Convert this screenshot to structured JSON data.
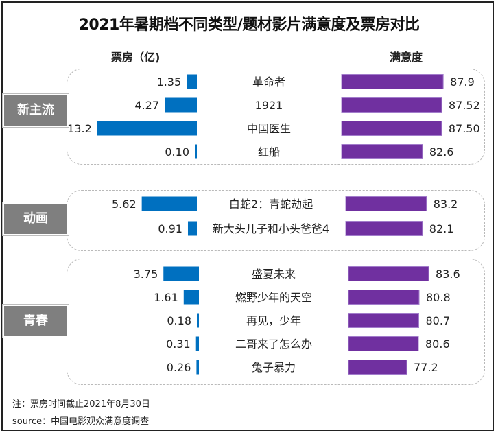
{
  "chart_data": {
    "type": "bar",
    "title": "2021年暑期档不同类型/题材影片满意度及票房对比",
    "left_axis_label": "票房（亿)",
    "right_axis_label": "满意度",
    "groups": [
      {
        "name": "新主流",
        "films": [
          {
            "title": "革命者",
            "box_office": 1.35,
            "box_office_label": "1.35",
            "satisfaction": 87.9,
            "satisfaction_label": "87.9"
          },
          {
            "title": "1921",
            "box_office": 4.27,
            "box_office_label": "4.27",
            "satisfaction": 87.52,
            "satisfaction_label": "87.52"
          },
          {
            "title": "中国医生",
            "box_office": 13.2,
            "box_office_label": "13.2",
            "satisfaction": 87.5,
            "satisfaction_label": "87.50"
          },
          {
            "title": "红船",
            "box_office": 0.1,
            "box_office_label": "0.10",
            "satisfaction": 82.6,
            "satisfaction_label": "82.6"
          }
        ]
      },
      {
        "name": "动画",
        "films": [
          {
            "title": "白蛇2：青蛇劫起",
            "box_office": 5.62,
            "box_office_label": "5.62",
            "satisfaction": 83.2,
            "satisfaction_label": "83.2"
          },
          {
            "title": "新大头儿子和小头爸爸4",
            "box_office": 0.91,
            "box_office_label": "0.91",
            "satisfaction": 82.1,
            "satisfaction_label": "82.1"
          }
        ]
      },
      {
        "name": "青春",
        "films": [
          {
            "title": "盛夏未来",
            "box_office": 3.75,
            "box_office_label": "3.75",
            "satisfaction": 83.6,
            "satisfaction_label": "83.6"
          },
          {
            "title": "燃野少年的天空",
            "box_office": 1.61,
            "box_office_label": "1.61",
            "satisfaction": 80.8,
            "satisfaction_label": "80.8"
          },
          {
            "title": "再见，少年",
            "box_office": 0.18,
            "box_office_label": "0.18",
            "satisfaction": 80.7,
            "satisfaction_label": "80.7"
          },
          {
            "title": "二哥来了怎么办",
            "box_office": 0.31,
            "box_office_label": "0.31",
            "satisfaction": 80.6,
            "satisfaction_label": "80.6"
          },
          {
            "title": "兔子暴力",
            "box_office": 0.26,
            "box_office_label": "0.26",
            "satisfaction": 77.2,
            "satisfaction_label": "77.2"
          }
        ]
      }
    ],
    "colors": {
      "box_office": "#0070c0",
      "satisfaction": "#7030a0",
      "group_tag": "#7f7f7f"
    },
    "notes": [
      "注：票房时间截止2021年8月30日",
      "source：中国电影观众满意度调查"
    ]
  }
}
